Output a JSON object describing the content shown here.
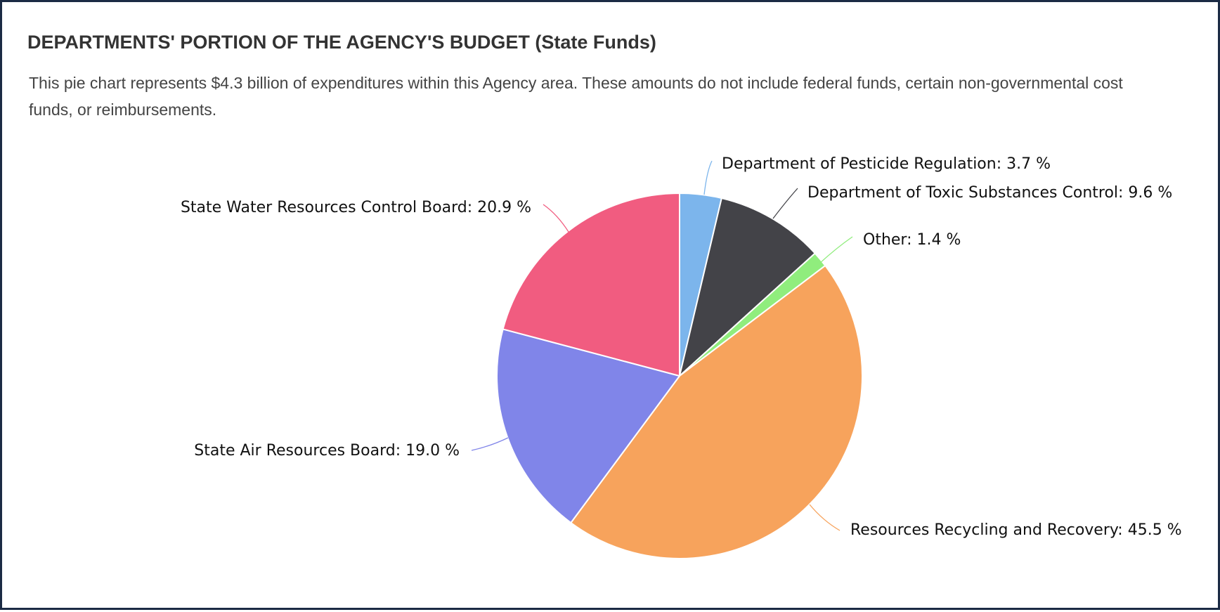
{
  "header": {
    "title": "DEPARTMENTS' PORTION OF THE AGENCY'S BUDGET (State Funds)",
    "description": "This pie chart represents $4.3 billion of expenditures within this Agency area. These amounts do not include federal funds, certain non-governmental cost funds, or reimbursements."
  },
  "chart_data": {
    "type": "pie",
    "title": "DEPARTMENTS' PORTION OF THE AGENCY'S BUDGET (State Funds)",
    "subtitle": "This pie chart represents $4.3 billion of expenditures within this Agency area. These amounts do not include federal funds, certain non-governmental cost funds, or reimbursements.",
    "start_angle": "12 o'clock, clockwise",
    "slices": [
      {
        "label": "Department of Pesticide Regulation: 3.7 %",
        "name": "Department of Pesticide Regulation",
        "value": 3.7,
        "color": "#7cb5ec"
      },
      {
        "label": "Department of Toxic Substances Control: 9.6 %",
        "name": "Department of Toxic Substances Control",
        "value": 9.6,
        "color": "#434348"
      },
      {
        "label": "Other: 1.4 %",
        "name": "Other",
        "value": 1.4,
        "color": "#90ed7d"
      },
      {
        "label": "Resources Recycling and Recovery: 45.5 %",
        "name": "Resources Recycling and Recovery",
        "value": 45.5,
        "color": "#f7a35c"
      },
      {
        "label": "State Air Resources Board: 19.0 %",
        "name": "State Air Resources Board",
        "value": 19.0,
        "color": "#8085e9"
      },
      {
        "label": "State Water Resources Control Board: 20.9 %",
        "name": "State Water Resources Control Board",
        "value": 20.9,
        "color": "#f15c80"
      }
    ]
  }
}
